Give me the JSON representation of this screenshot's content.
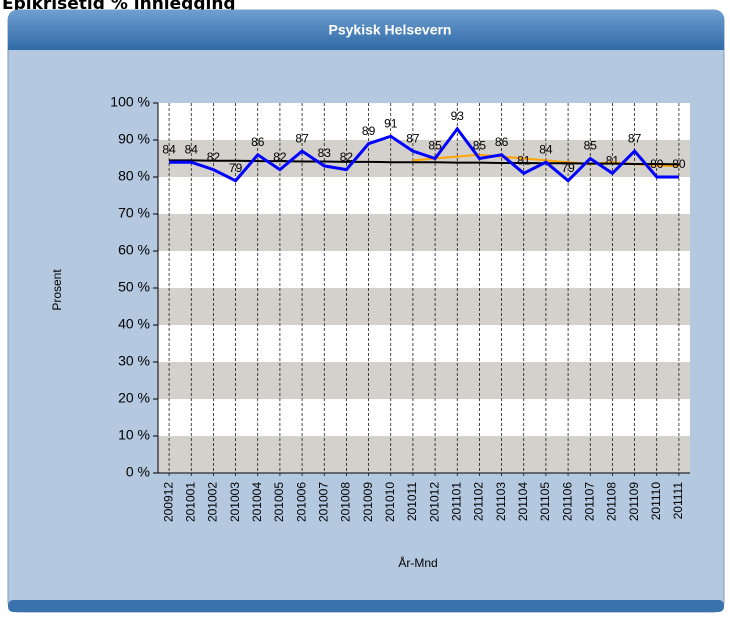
{
  "page_title": "Epikrisetid % innlegging",
  "chart_data": {
    "type": "line",
    "title": "Psykisk Helsevern",
    "x_label": "År-Mnd",
    "y_label": "Prosent",
    "categories": [
      "200912",
      "201001",
      "201002",
      "201003",
      "201004",
      "201005",
      "201006",
      "201007",
      "201008",
      "201009",
      "201010",
      "201011",
      "201012",
      "201101",
      "201102",
      "201103",
      "201104",
      "201105",
      "201106",
      "201107",
      "201108",
      "201109",
      "201110",
      "201111"
    ],
    "series": [
      {
        "color": "#0000ff",
        "data_labels": true,
        "values": [
          84,
          84,
          82,
          79,
          86,
          82,
          87,
          83,
          82,
          89,
          91,
          87,
          85,
          93,
          85,
          86,
          81,
          84,
          79,
          85,
          81,
          87,
          80,
          80
        ]
      },
      {
        "color": "#000000",
        "data_labels": false,
        "values": [
          84.5,
          84.5,
          84.4,
          84.4,
          84.3,
          84.3,
          84.2,
          84.2,
          84.1,
          84.1,
          84.0,
          84.0,
          84.0,
          83.9,
          83.9,
          83.8,
          83.8,
          83.7,
          83.7,
          83.6,
          83.6,
          83.5,
          83.5,
          83.4
        ]
      },
      {
        "color": "#ffa500",
        "data_labels": false,
        "values": [
          null,
          null,
          null,
          null,
          null,
          null,
          null,
          null,
          null,
          null,
          null,
          84.5,
          85,
          85.5,
          86,
          85.5,
          85,
          84.5,
          84,
          83.5,
          84,
          83.5,
          83,
          83
        ]
      }
    ],
    "ylim": [
      0,
      100
    ],
    "yticks": [
      {
        "value": 0,
        "label": "0 %"
      },
      {
        "value": 10,
        "label": "10 %"
      },
      {
        "value": 20,
        "label": "20 %"
      },
      {
        "value": 30,
        "label": "30 %"
      },
      {
        "value": 40,
        "label": "40 %"
      },
      {
        "value": 50,
        "label": "50 %"
      },
      {
        "value": 60,
        "label": "60 %"
      },
      {
        "value": 70,
        "label": "70 %"
      },
      {
        "value": 80,
        "label": "80 %"
      },
      {
        "value": 90,
        "label": "90 %"
      },
      {
        "value": 100,
        "label": "100 %"
      }
    ],
    "grid": true
  }
}
